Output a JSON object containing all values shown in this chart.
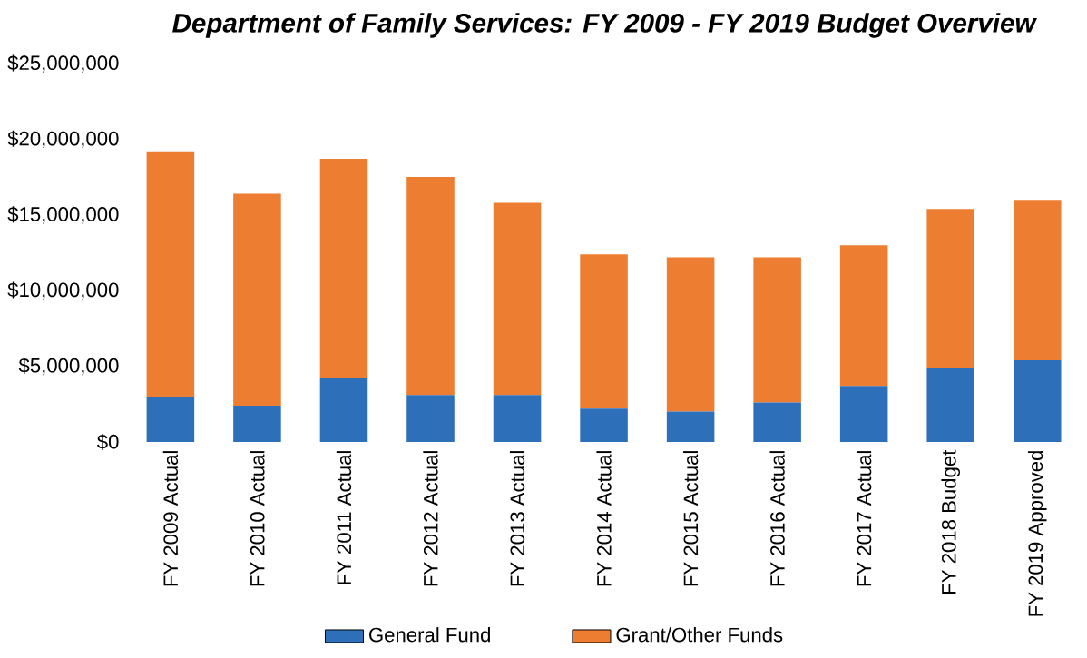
{
  "chart_data": {
    "type": "bar",
    "stacked": true,
    "title": "Department of Family Services: FY 2009 - FY 2019 Budget Overview",
    "categories": [
      "FY 2009 Actual",
      "FY 2010 Actual",
      "FY 2011 Actual",
      "FY 2012 Actual",
      "FY 2013 Actual",
      "FY 2014 Actual",
      "FY 2015 Actual",
      "FY 2016 Actual",
      "FY 2017 Actual",
      "FY 2018 Budget",
      "FY 2019 Approved"
    ],
    "series": [
      {
        "name": "General Fund",
        "color": "#2e6fba",
        "values": [
          3000000,
          2400000,
          4200000,
          3100000,
          3100000,
          2200000,
          2000000,
          2600000,
          3700000,
          4900000,
          5400000
        ]
      },
      {
        "name": "Grant/Other Funds",
        "color": "#ed7d31",
        "values": [
          16200000,
          14000000,
          14500000,
          14400000,
          12700000,
          10200000,
          10200000,
          9600000,
          9300000,
          10500000,
          10600000
        ]
      }
    ],
    "ylim": [
      0,
      25000000
    ],
    "yticks": [
      {
        "value": 0,
        "label": "$0"
      },
      {
        "value": 5000000,
        "label": "$5,000,000"
      },
      {
        "value": 10000000,
        "label": "$10,000,000"
      },
      {
        "value": 15000000,
        "label": "$15,000,000"
      },
      {
        "value": 20000000,
        "label": "$20,000,000"
      },
      {
        "value": 25000000,
        "label": "$25,000,000"
      }
    ],
    "legend": "bottom"
  }
}
